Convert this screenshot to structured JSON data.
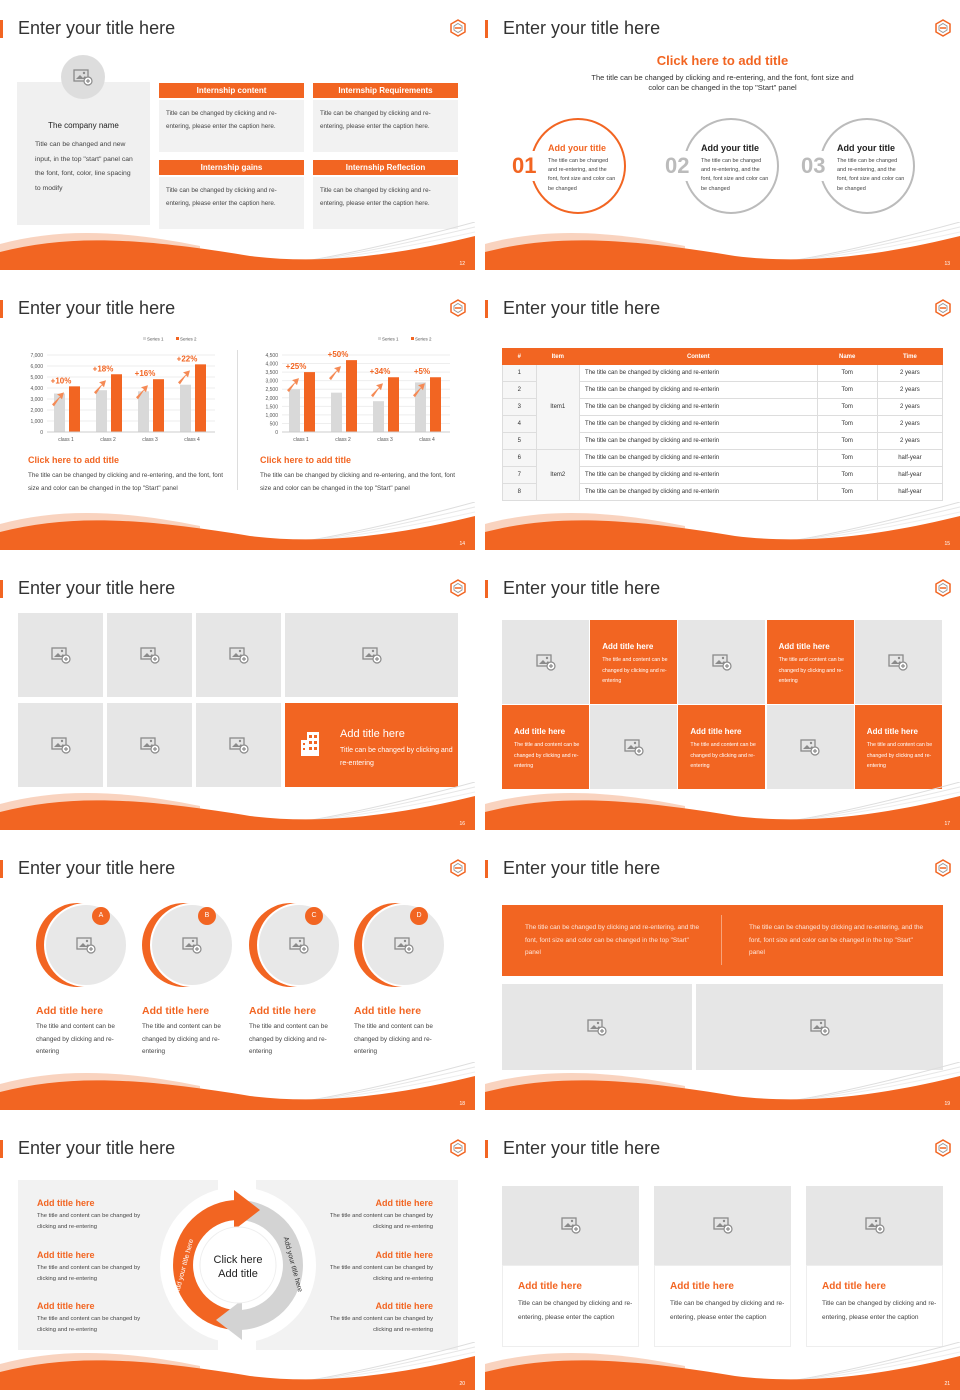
{
  "theme": {
    "accent": "#f26522",
    "panel": "#f0f0f0",
    "placeholder": "#e6e6e6"
  },
  "slides": [
    {
      "number": "12",
      "title": "Enter your title here",
      "company": {
        "name": "The company name",
        "text": "Title can be changed and new input, in the top \"start\" panel can the font, font, color, line spacing to modify"
      },
      "cards": [
        {
          "header": "Internship content",
          "text": "Title can be changed by clicking and re-entering, please enter the caption here."
        },
        {
          "header": "Internship Requirements",
          "text": "Title can be changed by clicking and re-entering, please enter the caption here."
        },
        {
          "header": "Internship gains",
          "text": "Title can be changed by clicking and re-entering, please enter the caption here."
        },
        {
          "header": "Internship Reflection",
          "text": "Title can be changed by clicking and re-entering, please enter the caption here."
        }
      ]
    },
    {
      "number": "13",
      "title": "Enter your title here",
      "heading": "Click here to add title",
      "subtitle": "The title can be changed by clicking and re-entering, and the font, font size and color can be changed in the top \"Start\" panel",
      "steps": [
        {
          "num": "01",
          "title": "Add your title",
          "text": "The title can be changed and re-entering, and the font, font size and color can be changed"
        },
        {
          "num": "02",
          "title": "Add your title",
          "text": "The title can be changed and re-entering, and the font, font size and color can be changed"
        },
        {
          "num": "03",
          "title": "Add your title",
          "text": "The title can be changed and re-entering, and the font, font size and color can be changed"
        }
      ]
    },
    {
      "number": "14",
      "title": "Enter your title here",
      "captions": [
        {
          "title": "Click here to add title",
          "text": "The title can be changed by clicking and re-entering, and the font, font size and color can be changed in the top \"Start\" panel"
        },
        {
          "title": "Click here to add title",
          "text": "The title can be changed by clicking and re-entering, and the font, font size and color can be changed in the top \"Start\" panel"
        }
      ]
    },
    {
      "number": "15",
      "title": "Enter your title here",
      "table": {
        "headers": [
          "#",
          "Item",
          "Content",
          "Name",
          "Time"
        ],
        "groups": [
          {
            "item": "Item1",
            "rows": [
              {
                "n": "1",
                "content": "The title can be changed by clicking and re-enterin",
                "name": "Tom",
                "time": "2 years"
              },
              {
                "n": "2",
                "content": "The title can be changed by clicking and re-enterin",
                "name": "Tom",
                "time": "2 years"
              },
              {
                "n": "3",
                "content": "The title can be changed by clicking and re-enterin",
                "name": "Tom",
                "time": "2 years"
              },
              {
                "n": "4",
                "content": "The title can be changed by clicking and re-enterin",
                "name": "Tom",
                "time": "2 years"
              },
              {
                "n": "5",
                "content": "The title can be changed by clicking and re-enterin",
                "name": "Tom",
                "time": "2 years"
              }
            ]
          },
          {
            "item": "Item2",
            "rows": [
              {
                "n": "6",
                "content": "The title can be changed by clicking and re-enterin",
                "name": "Tom",
                "time": "half-year"
              },
              {
                "n": "7",
                "content": "The title can be changed by clicking and re-enterin",
                "name": "Tom",
                "time": "half-year"
              },
              {
                "n": "8",
                "content": "The title can be changed by clicking and re-enterin",
                "name": "Tom",
                "time": "half-year"
              }
            ]
          }
        ]
      }
    },
    {
      "number": "16",
      "title": "Enter your title here",
      "feature": {
        "title": "Add title here",
        "text": "Title can be changed by clicking and re-entering",
        "icon": "building-icon"
      }
    },
    {
      "number": "17",
      "title": "Enter your title here",
      "tiles": [
        {
          "title": "Add title here",
          "text": "The title and content can be changed by clicking and re-entering"
        },
        {
          "title": "Add title here",
          "text": "The title and content can be changed by clicking and re-entering"
        },
        {
          "title": "Add title here",
          "text": "The title and content can be changed by clicking and re-entering"
        },
        {
          "title": "Add title here",
          "text": "The title and content can be changed by clicking and re-entering"
        },
        {
          "title": "Add title here",
          "text": "The title and content can be changed by clicking and re-entering"
        }
      ]
    },
    {
      "number": "18",
      "title": "Enter your title here",
      "items": [
        {
          "badge": "A",
          "title": "Add title here",
          "text": "The title and content can be changed by clicking and re-entering"
        },
        {
          "badge": "B",
          "title": "Add title here",
          "text": "The title and content can be changed by clicking and re-entering"
        },
        {
          "badge": "C",
          "title": "Add title here",
          "text": "The title and content can be changed by clicking and re-entering"
        },
        {
          "badge": "D",
          "title": "Add title here",
          "text": "The title and content can be changed by clicking and re-entering"
        }
      ]
    },
    {
      "number": "19",
      "title": "Enter your title here",
      "banner": [
        "The title can be changed by clicking and re-entering, and the font, font size and color can be changed in the top \"Start\" panel",
        "The title can be changed by clicking and re-entering, and the font, font size and color can be changed in the top \"Start\" panel"
      ]
    },
    {
      "number": "20",
      "title": "Enter your title here",
      "left": [
        {
          "title": "Add title here",
          "text": "The title and content can be changed by clicking and re-entering"
        },
        {
          "title": "Add title here",
          "text": "The title and content can be changed by clicking and re-entering"
        },
        {
          "title": "Add title here",
          "text": "The title and content can be changed by clicking and re-entering"
        }
      ],
      "right": [
        {
          "title": "Add title here",
          "text": "The title and content can be changed by clicking and re-entering"
        },
        {
          "title": "Add title here",
          "text": "The title and content can be changed by clicking and re-entering"
        },
        {
          "title": "Add title here",
          "text": "The title and content can be changed by clicking and re-entering"
        }
      ],
      "center": [
        "Click here",
        "Add title"
      ],
      "arc_labels": [
        "Add your title here",
        "Add your title here"
      ]
    },
    {
      "number": "21",
      "title": "Enter your title here",
      "cards": [
        {
          "title": "Add title here",
          "text": "Title can be changed by clicking and re-entering, please enter the caption"
        },
        {
          "title": "Add title here",
          "text": "Title can be changed by clicking and re-entering, please enter the caption"
        },
        {
          "title": "Add title here",
          "text": "Title can be changed by clicking and re-entering, please enter the caption"
        }
      ]
    }
  ],
  "chart_data": [
    {
      "type": "bar",
      "categories": [
        "class 1",
        "class 2",
        "class 3",
        "class 4"
      ],
      "series": [
        {
          "name": "Series 1",
          "values": [
            3500,
            3800,
            3700,
            4300
          ],
          "color": "#d9d9d9"
        },
        {
          "name": "Series 2",
          "values": [
            4150,
            5250,
            4800,
            6150
          ],
          "color": "#f26522"
        }
      ],
      "annotations": [
        "+10%",
        "+18%",
        "+16%",
        "+22%"
      ],
      "ylim": [
        0,
        7000
      ],
      "yticks": [
        "0",
        "1,000",
        "2,000",
        "3,000",
        "4,000",
        "5,000",
        "6,000",
        "7,000"
      ],
      "grid": true,
      "legend": "top-right"
    },
    {
      "type": "bar",
      "categories": [
        "class 1",
        "class 2",
        "class 3",
        "class 4"
      ],
      "series": [
        {
          "name": "Series 1",
          "values": [
            2500,
            2300,
            1800,
            2900
          ],
          "color": "#d9d9d9"
        },
        {
          "name": "Series 2",
          "values": [
            3500,
            4200,
            3200,
            3200
          ],
          "color": "#f26522"
        }
      ],
      "annotations": [
        "+25%",
        "+50%",
        "+34%",
        "+5%"
      ],
      "ylim": [
        0,
        4500
      ],
      "yticks": [
        "0",
        "500",
        "1,000",
        "1,500",
        "2,000",
        "2,500",
        "3,000",
        "3,500",
        "4,000",
        "4,500"
      ],
      "grid": true,
      "legend": "top-right"
    }
  ]
}
